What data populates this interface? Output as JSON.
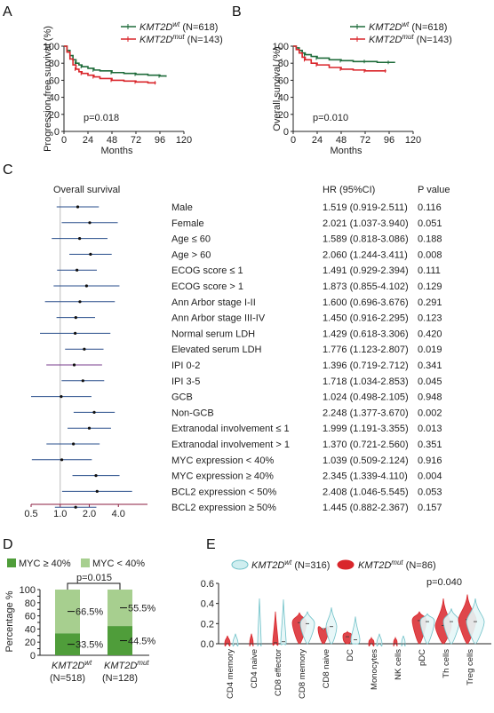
{
  "panels": {
    "a": "A",
    "b": "B",
    "c": "C",
    "d": "D",
    "e": "E"
  },
  "colors": {
    "wt": "#1e6b3a",
    "mut": "#d9262b",
    "forest_line": "#2a4f8c",
    "myc_high": "#4f9d3a",
    "myc_low": "#a7cf8f",
    "violin_wt": "#6fc1c8",
    "violin_mut": "#d9262b",
    "ref_line": "#bbbbbb"
  },
  "km_legend": {
    "wt": {
      "gene": "KMT2D",
      "sup": "wt",
      "n": "(N=618)"
    },
    "mut": {
      "gene": "KMT2D",
      "sup": "mut",
      "n": "(N=143)"
    }
  },
  "forest_titles": {
    "left": "Overall survival",
    "hr": "HR (95%CI)",
    "p": "P value"
  },
  "d_legend": {
    "high": "MYC ≥ 40%",
    "low": "MYC < 40%"
  },
  "e_legend": {
    "wt": {
      "gene": "KMT2D",
      "sup": "wt",
      "n": "(N=316)"
    },
    "mut": {
      "gene": "KMT2D",
      "sup": "mut",
      "n": "(N=86)"
    }
  },
  "chart_data": [
    {
      "type": "line",
      "panel": "A",
      "ylabel": "Progression-free survival (%)",
      "xlabel": "Months",
      "ylim": [
        0,
        100
      ],
      "xlim": [
        0,
        120
      ],
      "xticks": [
        0,
        24,
        48,
        72,
        96,
        120
      ],
      "yticks": [
        0,
        20,
        40,
        60,
        80,
        100
      ],
      "annotation": "p=0.018",
      "series": [
        {
          "name": "KMT2D wt (N=618)",
          "x": [
            0,
            3,
            6,
            9,
            12,
            15,
            18,
            24,
            30,
            36,
            48,
            60,
            72,
            84,
            96,
            102
          ],
          "y": [
            100,
            95,
            89,
            84,
            80,
            78,
            76,
            74,
            72,
            71,
            69,
            68,
            67,
            66,
            65,
            64
          ]
        },
        {
          "name": "KMT2D mut (N=143)",
          "x": [
            0,
            3,
            6,
            9,
            12,
            15,
            18,
            24,
            30,
            36,
            48,
            60,
            72,
            84,
            92
          ],
          "y": [
            100,
            93,
            85,
            78,
            73,
            70,
            68,
            66,
            64,
            62,
            60,
            59,
            58,
            57,
            57
          ]
        }
      ]
    },
    {
      "type": "line",
      "panel": "B",
      "ylabel": "Overall survival (%)",
      "xlabel": "Months",
      "ylim": [
        0,
        100
      ],
      "xlim": [
        0,
        120
      ],
      "xticks": [
        0,
        24,
        48,
        72,
        96,
        120
      ],
      "yticks": [
        0,
        20,
        40,
        60,
        80,
        100
      ],
      "annotation": "p=0.010",
      "series": [
        {
          "name": "KMT2D wt (N=618)",
          "x": [
            0,
            3,
            6,
            9,
            12,
            18,
            24,
            36,
            48,
            60,
            72,
            84,
            96,
            102
          ],
          "y": [
            100,
            98,
            95,
            92,
            90,
            88,
            86,
            84,
            83,
            82,
            82,
            81,
            81,
            81
          ]
        },
        {
          "name": "KMT2D mut (N=143)",
          "x": [
            0,
            3,
            6,
            9,
            12,
            18,
            24,
            36,
            48,
            60,
            72,
            84,
            93
          ],
          "y": [
            100,
            96,
            92,
            87,
            84,
            80,
            78,
            75,
            73,
            72,
            71,
            71,
            71
          ]
        }
      ]
    },
    {
      "type": "forest",
      "panel": "C",
      "xticks": [
        "0.5",
        "1.0",
        "2.0",
        "4.0"
      ],
      "rows": [
        {
          "label": "Male",
          "hr_text": "1.519 (0.919-2.511)",
          "p": "0.116",
          "hr": 1.519,
          "lo": 0.919,
          "hi": 2.511
        },
        {
          "label": "Female",
          "hr_text": "2.021 (1.037-3.940)",
          "p": "0.051",
          "hr": 2.021,
          "lo": 1.037,
          "hi": 3.94
        },
        {
          "label": "Age ≤ 60",
          "hr_text": "1.589 (0.818-3.086)",
          "p": "0.188",
          "hr": 1.589,
          "lo": 0.818,
          "hi": 3.086
        },
        {
          "label": "Age > 60",
          "hr_text": "2.060 (1.244-3.411)",
          "p": "0.008",
          "hr": 2.06,
          "lo": 1.244,
          "hi": 3.411
        },
        {
          "label": "ECOG score ≤ 1",
          "hr_text": "1.491 (0.929-2.394)",
          "p": "0.111",
          "hr": 1.491,
          "lo": 0.929,
          "hi": 2.394
        },
        {
          "label": "ECOG score > 1",
          "hr_text": "1.873 (0.855-4.102)",
          "p": "0.129",
          "hr": 1.873,
          "lo": 0.855,
          "hi": 4.102
        },
        {
          "label": "Ann Arbor stage I-II",
          "hr_text": "1.600 (0.696-3.676)",
          "p": "0.291",
          "hr": 1.6,
          "lo": 0.696,
          "hi": 3.676
        },
        {
          "label": "Ann Arbor stage III-IV",
          "hr_text": "1.450 (0.916-2.295)",
          "p": "0.123",
          "hr": 1.45,
          "lo": 0.916,
          "hi": 2.295
        },
        {
          "label": "Normal serum LDH",
          "hr_text": "1.429 (0.618-3.306)",
          "p": "0.420",
          "hr": 1.429,
          "lo": 0.618,
          "hi": 3.306
        },
        {
          "label": "Elevated serum LDH",
          "hr_text": "1.776 (1.123-2.807)",
          "p": "0.019",
          "hr": 1.776,
          "lo": 1.123,
          "hi": 2.807
        },
        {
          "label": "IPI 0-2",
          "hr_text": "1.396 (0.719-2.712)",
          "p": "0.341",
          "hr": 1.396,
          "lo": 0.719,
          "hi": 2.712
        },
        {
          "label": "IPI 3-5",
          "hr_text": "1.718 (1.034-2.853)",
          "p": "0.045",
          "hr": 1.718,
          "lo": 1.034,
          "hi": 2.853
        },
        {
          "label": "GCB",
          "hr_text": "1.024 (0.498-2.105)",
          "p": "0.948",
          "hr": 1.024,
          "lo": 0.498,
          "hi": 2.105
        },
        {
          "label": "Non-GCB",
          "hr_text": "2.248 (1.377-3.670)",
          "p": "0.002",
          "hr": 2.248,
          "lo": 1.377,
          "hi": 3.67
        },
        {
          "label": "Extranodal involvement ≤ 1",
          "hr_text": "1.999 (1.191-3.355)",
          "p": "0.013",
          "hr": 1.999,
          "lo": 1.191,
          "hi": 3.355
        },
        {
          "label": "Extranodal involvement > 1",
          "hr_text": "1.370 (0.721-2.560)",
          "p": "0.351",
          "hr": 1.37,
          "lo": 0.721,
          "hi": 2.56
        },
        {
          "label": "MYC expression < 40%",
          "hr_text": "1.039 (0.509-2.124)",
          "p": "0.916",
          "hr": 1.039,
          "lo": 0.509,
          "hi": 2.124
        },
        {
          "label": "MYC expression ≥ 40%",
          "hr_text": "2.345 (1.339-4.110)",
          "p": "0.004",
          "hr": 2.345,
          "lo": 1.339,
          "hi": 4.11
        },
        {
          "label": "BCL2 expression < 50%",
          "hr_text": "2.408 (1.046-5.545)",
          "p": "0.053",
          "hr": 2.408,
          "lo": 1.046,
          "hi": 5.545
        },
        {
          "label": "BCL2 expression ≥ 50%",
          "hr_text": "1.445 (0.882-2.367)",
          "p": "0.157",
          "hr": 1.445,
          "lo": 0.882,
          "hi": 2.367
        }
      ]
    },
    {
      "type": "bar",
      "panel": "D",
      "stacked": true,
      "ylabel": "Percentage %",
      "ylim": [
        0,
        100
      ],
      "yticks": [
        0,
        10,
        20,
        30,
        40,
        50,
        60,
        70,
        80,
        90,
        100
      ],
      "annotation": "p=0.015",
      "categories": [
        {
          "gene": "KMT2D",
          "sup": "wt",
          "n": "(N=518)"
        },
        {
          "gene": "KMT2D",
          "sup": "mut",
          "n": "(N=128)"
        }
      ],
      "series": [
        {
          "name": "MYC ≥ 40%",
          "values": [
            33.5,
            44.5
          ],
          "labels": [
            "33.5%",
            "44.5%"
          ]
        },
        {
          "name": "MYC < 40%",
          "values": [
            66.5,
            55.5
          ],
          "labels": [
            "66.5%",
            "55.5%"
          ]
        }
      ]
    },
    {
      "type": "violin",
      "panel": "E",
      "ylim": [
        0,
        0.6
      ],
      "yticks": [
        "0.0",
        "0.2",
        "0.4",
        "0.6"
      ],
      "annotation": "p=0.040",
      "categories": [
        "CD4 memory",
        "CD4 naive",
        "CD8 effector",
        "CD8 memory",
        "CD8 naive",
        "DC",
        "Monocytes",
        "NK cells",
        "pDC",
        "Th cells",
        "Treg cells"
      ],
      "series": [
        {
          "name": "KMT2D wt (N=316)",
          "medians": [
            0.0,
            0.0,
            0.02,
            0.2,
            0.17,
            0.04,
            0.0,
            0.0,
            0.22,
            0.22,
            0.22
          ],
          "maxima": [
            0.1,
            0.45,
            0.44,
            0.32,
            0.36,
            0.27,
            0.1,
            0.08,
            0.3,
            0.35,
            0.45
          ]
        },
        {
          "name": "KMT2D mut (N=86)",
          "medians": [
            0.0,
            0.0,
            0.01,
            0.21,
            0.15,
            0.07,
            0.0,
            0.0,
            0.23,
            0.18,
            0.24
          ],
          "maxima": [
            0.08,
            0.1,
            0.32,
            0.31,
            0.13,
            0.12,
            0.06,
            0.06,
            0.32,
            0.45,
            0.49
          ]
        }
      ]
    }
  ]
}
